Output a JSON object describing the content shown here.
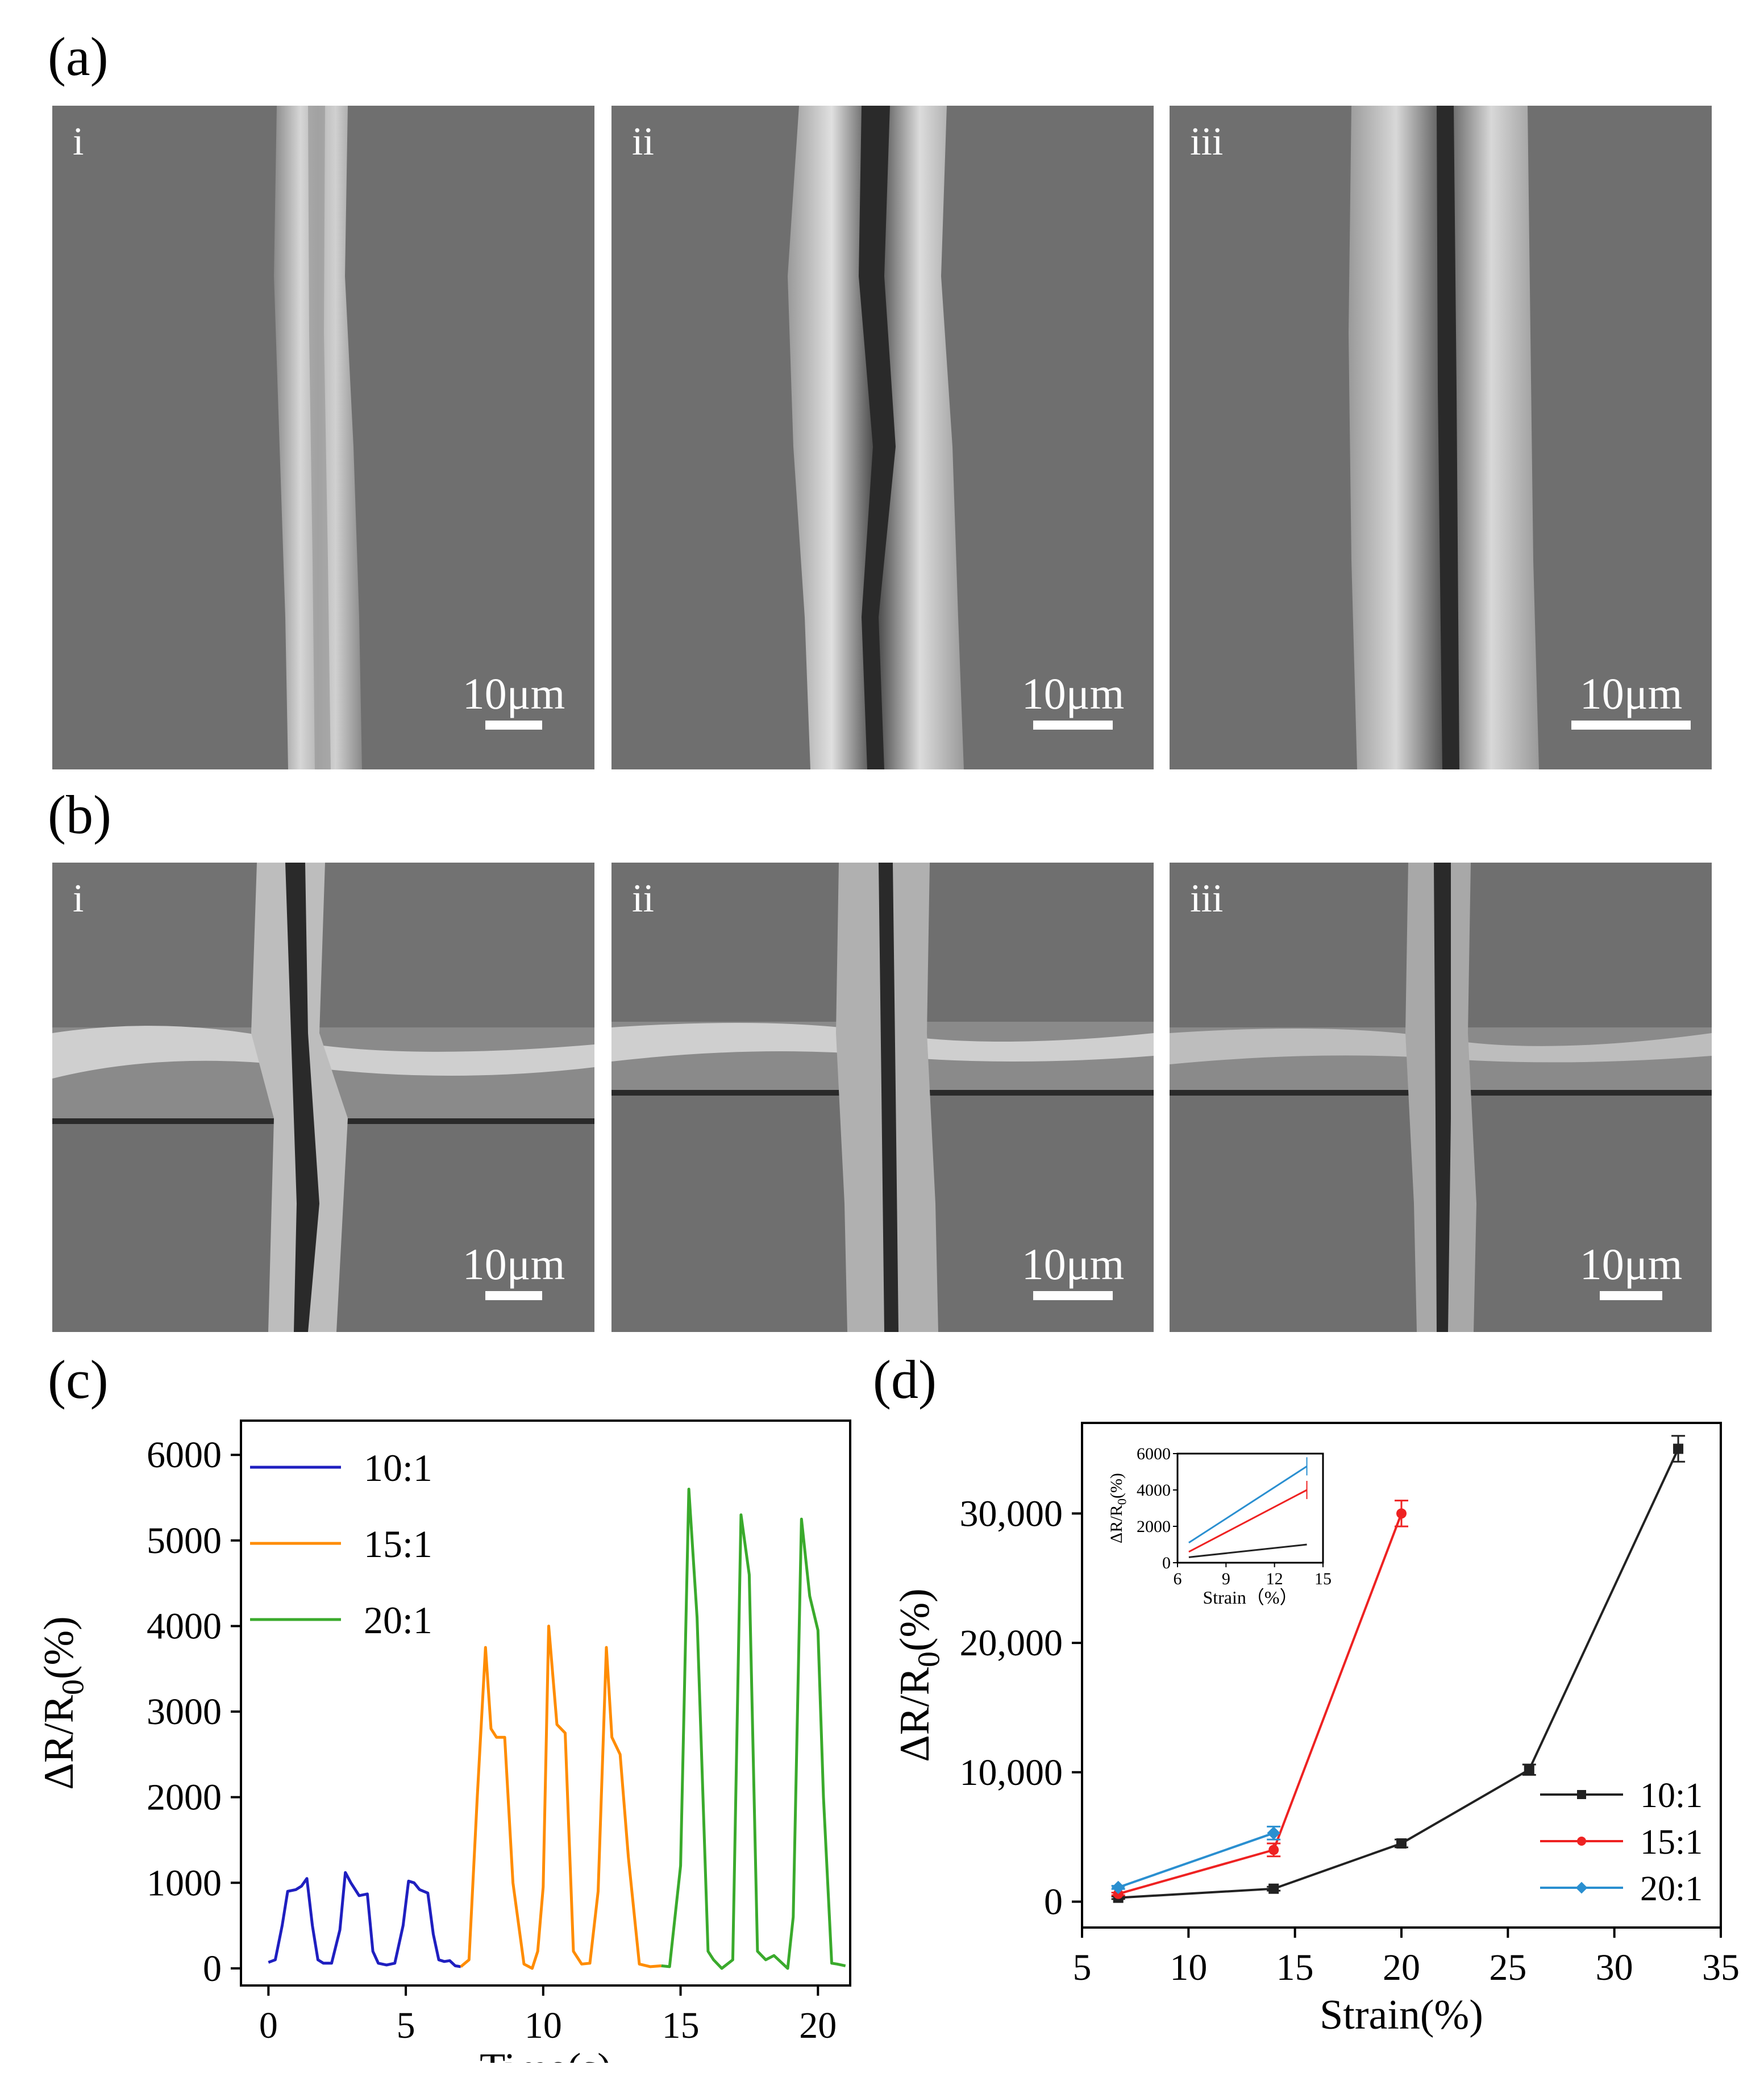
{
  "figure": {
    "panels": {
      "a": "(a)",
      "b": "(b)",
      "c": "(c)",
      "d": "(d)"
    },
    "sem": {
      "a": [
        {
          "label": "i",
          "scale": "10μm"
        },
        {
          "label": "ii",
          "scale": "10μm"
        },
        {
          "label": "iii",
          "scale": "10μm"
        }
      ],
      "b": [
        {
          "label": "i",
          "scale": "10μm"
        },
        {
          "label": "ii",
          "scale": "10μm"
        },
        {
          "label": "iii",
          "scale": "10μm"
        }
      ]
    },
    "colors": {
      "sem_background": "#6f6f6f",
      "sem_crack": "#2a2a2a",
      "sem_edge": "#d8d8d8"
    }
  },
  "chart_data": [
    {
      "id": "c",
      "type": "line",
      "xlabel": "Time(s)",
      "ylabel": "ΔR/R0(%)",
      "xlim": [
        -1,
        22
      ],
      "ylim": [
        -200,
        6400
      ],
      "xticks": [
        0,
        5,
        10,
        15,
        20
      ],
      "yticks": [
        0,
        1000,
        2000,
        3000,
        4000,
        5000,
        6000
      ],
      "legend": "top-left",
      "series": [
        {
          "name": "10:1",
          "color": "#1f1fc0",
          "x": [
            0,
            0.25,
            0.5,
            0.7,
            1.0,
            1.2,
            1.4,
            1.6,
            1.8,
            2.0,
            2.3,
            2.6,
            2.8,
            3.0,
            3.3,
            3.6,
            3.8,
            4.0,
            4.3,
            4.6,
            4.9,
            5.1,
            5.3,
            5.5,
            5.8,
            6.0,
            6.2,
            6.4,
            6.6,
            6.8,
            7.0
          ],
          "y": [
            70,
            100,
            500,
            900,
            920,
            960,
            1050,
            500,
            100,
            60,
            60,
            450,
            1120,
            1000,
            850,
            870,
            200,
            60,
            40,
            60,
            500,
            1020,
            1000,
            920,
            880,
            400,
            100,
            80,
            90,
            30,
            20
          ]
        },
        {
          "name": "15:1",
          "color": "#ff8c00",
          "x": [
            7.0,
            7.3,
            7.6,
            7.9,
            8.1,
            8.3,
            8.6,
            8.9,
            9.3,
            9.6,
            9.8,
            10.0,
            10.2,
            10.5,
            10.8,
            11.1,
            11.4,
            11.7,
            12.0,
            12.3,
            12.5,
            12.8,
            13.1,
            13.5,
            13.9,
            14.3
          ],
          "y": [
            20,
            100,
            2000,
            3750,
            2800,
            2700,
            2700,
            1000,
            50,
            0,
            200,
            950,
            4000,
            2850,
            2750,
            200,
            50,
            60,
            900,
            3750,
            2700,
            2500,
            1300,
            50,
            20,
            30
          ]
        },
        {
          "name": "20:1",
          "color": "#3aaa2c",
          "x": [
            14.3,
            14.6,
            15.0,
            15.3,
            15.6,
            16.0,
            16.2,
            16.5,
            16.9,
            17.2,
            17.5,
            17.8,
            18.1,
            18.4,
            18.9,
            19.1,
            19.4,
            19.7,
            20.0,
            20.2,
            20.5,
            20.7,
            21.0
          ],
          "y": [
            30,
            20,
            1200,
            5600,
            4100,
            200,
            100,
            0,
            100,
            5300,
            4600,
            200,
            100,
            150,
            0,
            600,
            5250,
            4350,
            3950,
            2000,
            60,
            50,
            30
          ]
        }
      ]
    },
    {
      "id": "d",
      "type": "line",
      "xlabel": "Strain(%)",
      "ylabel": "ΔR/R0(%)",
      "xlim": [
        5,
        35
      ],
      "ylim": [
        -2000,
        37000
      ],
      "xticks": [
        5,
        10,
        15,
        20,
        25,
        30,
        35
      ],
      "yticks": [
        0,
        10000,
        20000,
        30000
      ],
      "ytick_labels": [
        "0",
        "10,000",
        "20,000",
        "30,000"
      ],
      "legend": "bottom-right",
      "series": [
        {
          "name": "10:1",
          "color": "#222222",
          "marker": "square",
          "x": [
            6.7,
            14,
            20,
            26,
            33
          ],
          "y": [
            300,
            1000,
            4500,
            10200,
            35000
          ],
          "err": [
            100,
            150,
            300,
            400,
            1000
          ]
        },
        {
          "name": "15:1",
          "color": "#ee2222",
          "marker": "circle",
          "x": [
            6.7,
            14,
            20
          ],
          "y": [
            600,
            4000,
            30000
          ],
          "err": [
            100,
            500,
            1000
          ]
        },
        {
          "name": "20:1",
          "color": "#2a8fd0",
          "marker": "diamond",
          "x": [
            6.7,
            14
          ],
          "y": [
            1100,
            5300
          ],
          "err": [
            120,
            500
          ]
        }
      ],
      "inset": {
        "xlabel": "Strain（%）",
        "ylabel": "ΔR/R0(%)",
        "xlim": [
          6,
          15
        ],
        "ylim": [
          0,
          6000
        ],
        "xticks": [
          6,
          9,
          12,
          15
        ],
        "yticks": [
          0,
          2000,
          4000,
          6000
        ],
        "series": [
          {
            "color": "#222222",
            "x": [
              6.7,
              14
            ],
            "y": [
              300,
              1000
            ],
            "err": [
              0,
              0
            ]
          },
          {
            "color": "#ee2222",
            "x": [
              6.7,
              14
            ],
            "y": [
              600,
              4000
            ],
            "err": [
              0,
              500
            ]
          },
          {
            "color": "#2a8fd0",
            "x": [
              6.7,
              14
            ],
            "y": [
              1100,
              5300
            ],
            "err": [
              0,
              500
            ]
          }
        ]
      }
    }
  ]
}
